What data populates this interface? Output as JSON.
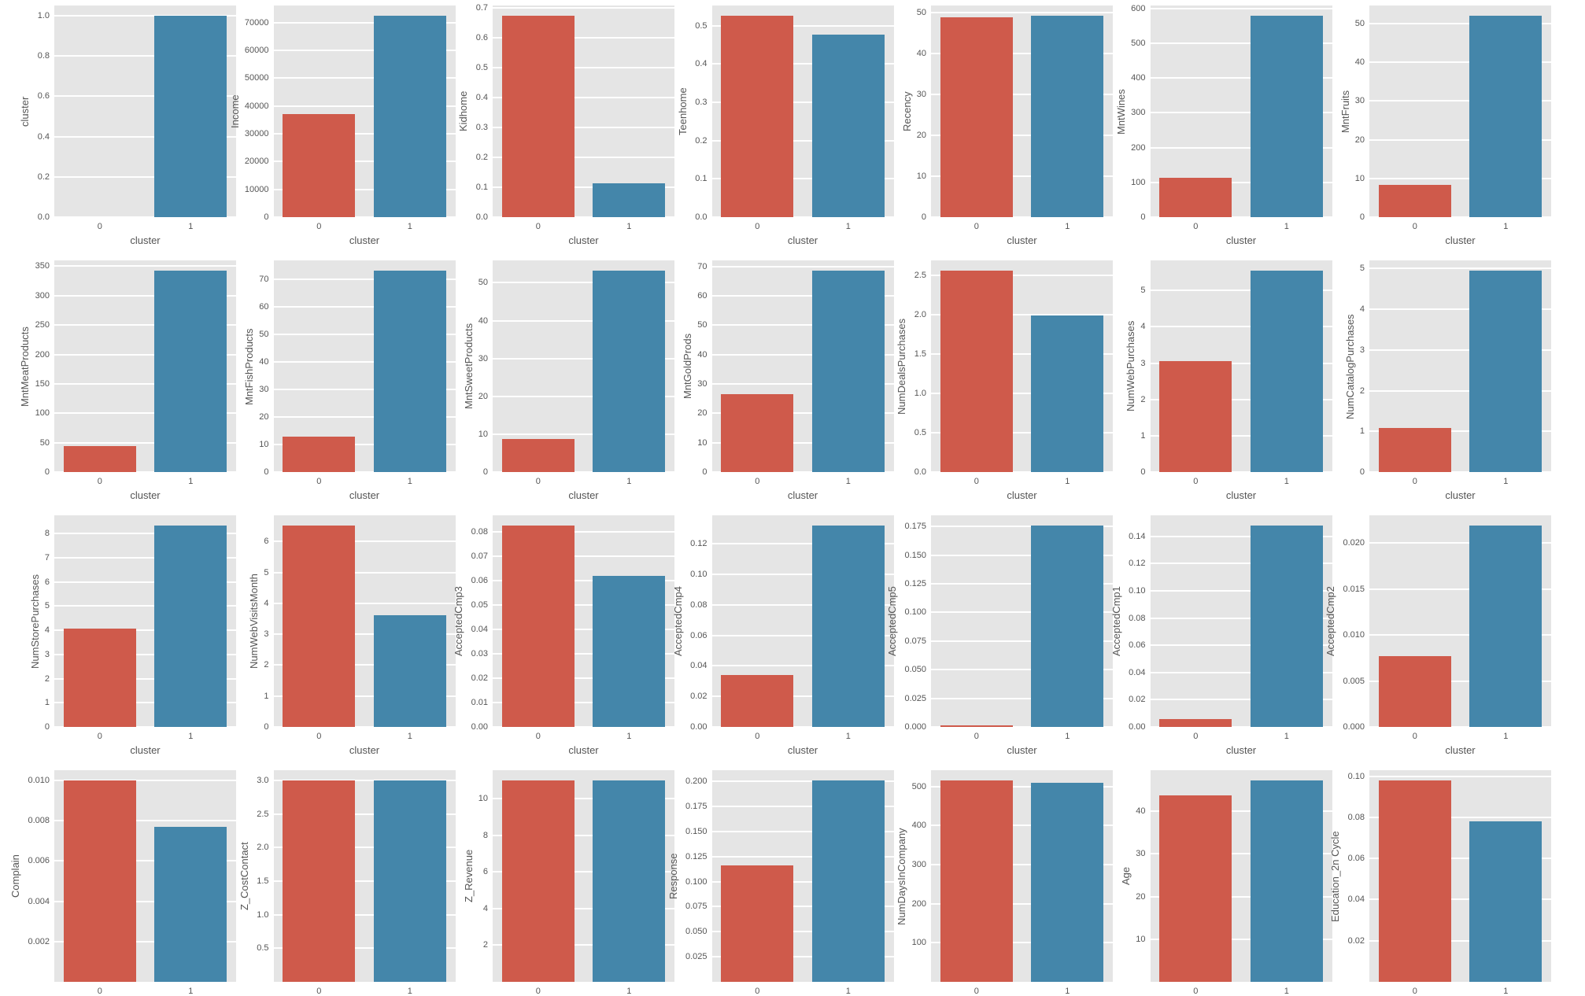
{
  "figure": {
    "description": "Grid of bar charts comparing feature means by cluster (seaborn ggplot style)",
    "colors": {
      "cluster_0": "#CF5A4B",
      "cluster_1": "#4486AA",
      "plot_bg": "#E5E5E5",
      "grid": "#FFFFFF",
      "text": "#555555"
    }
  },
  "chart_data": [
    {
      "type": "bar",
      "row": 0,
      "col": 0,
      "categories": [
        "0",
        "1"
      ],
      "values": [
        0.0,
        1.0
      ],
      "xlabel": "cluster",
      "ylabel": "cluster",
      "yticks": [
        "0.0",
        "0.2",
        "0.4",
        "0.6",
        "0.8",
        "1.0"
      ],
      "ytick_values": [
        0,
        0.2,
        0.4,
        0.6,
        0.8,
        1.0
      ],
      "ylim": [
        0,
        1.05
      ]
    },
    {
      "type": "bar",
      "row": 0,
      "col": 1,
      "categories": [
        "0",
        "1"
      ],
      "values": [
        37200,
        72500
      ],
      "xlabel": "cluster",
      "ylabel": "Income",
      "yticks": [
        "0",
        "10000",
        "20000",
        "30000",
        "40000",
        "50000",
        "60000",
        "70000"
      ],
      "ytick_values": [
        0,
        10000,
        20000,
        30000,
        40000,
        50000,
        60000,
        70000
      ],
      "ylim": [
        0,
        76100
      ]
    },
    {
      "type": "bar",
      "row": 0,
      "col": 2,
      "categories": [
        "0",
        "1"
      ],
      "values": [
        0.675,
        0.114
      ],
      "xlabel": "cluster",
      "ylabel": "Kidhome",
      "yticks": [
        "0.0",
        "0.1",
        "0.2",
        "0.3",
        "0.4",
        "0.5",
        "0.6",
        "0.7"
      ],
      "ytick_values": [
        0,
        0.1,
        0.2,
        0.3,
        0.4,
        0.5,
        0.6,
        0.7
      ],
      "ylim": [
        0,
        0.708
      ]
    },
    {
      "type": "bar",
      "row": 0,
      "col": 3,
      "categories": [
        "0",
        "1"
      ],
      "values": [
        0.527,
        0.477
      ],
      "xlabel": "cluster",
      "ylabel": "Teenhome",
      "yticks": [
        "0.0",
        "0.1",
        "0.2",
        "0.3",
        "0.4",
        "0.5"
      ],
      "ytick_values": [
        0,
        0.1,
        0.2,
        0.3,
        0.4,
        0.5
      ],
      "ylim": [
        0,
        0.553
      ]
    },
    {
      "type": "bar",
      "row": 0,
      "col": 4,
      "categories": [
        "0",
        "1"
      ],
      "values": [
        49.0,
        49.3
      ],
      "xlabel": "cluster",
      "ylabel": "Recency",
      "yticks": [
        "0",
        "10",
        "20",
        "30",
        "40",
        "50"
      ],
      "ytick_values": [
        0,
        10,
        20,
        30,
        40,
        50
      ],
      "ylim": [
        0,
        51.8
      ]
    },
    {
      "type": "bar",
      "row": 0,
      "col": 5,
      "categories": [
        "0",
        "1"
      ],
      "values": [
        113,
        580
      ],
      "xlabel": "cluster",
      "ylabel": "MntWines",
      "yticks": [
        "0",
        "100",
        "200",
        "300",
        "400",
        "500",
        "600"
      ],
      "ytick_values": [
        0,
        100,
        200,
        300,
        400,
        500,
        600
      ],
      "ylim": [
        0,
        609
      ]
    },
    {
      "type": "bar",
      "row": 0,
      "col": 6,
      "categories": [
        "0",
        "1"
      ],
      "values": [
        8.4,
        52.1
      ],
      "xlabel": "cluster",
      "ylabel": "MntFruits",
      "yticks": [
        "0",
        "10",
        "20",
        "30",
        "40",
        "50"
      ],
      "ytick_values": [
        0,
        10,
        20,
        30,
        40,
        50
      ],
      "ylim": [
        0,
        54.7
      ]
    },
    {
      "type": "bar",
      "row": 1,
      "col": 0,
      "categories": [
        "0",
        "1"
      ],
      "values": [
        44,
        343
      ],
      "xlabel": "cluster",
      "ylabel": "MntMeatProducts",
      "yticks": [
        "0",
        "50",
        "100",
        "150",
        "200",
        "250",
        "300",
        "350"
      ],
      "ytick_values": [
        0,
        50,
        100,
        150,
        200,
        250,
        300,
        350
      ],
      "ylim": [
        0,
        360
      ]
    },
    {
      "type": "bar",
      "row": 1,
      "col": 1,
      "categories": [
        "0",
        "1"
      ],
      "values": [
        12.8,
        73.3
      ],
      "xlabel": "cluster",
      "ylabel": "MntFishProducts",
      "yticks": [
        "0",
        "10",
        "20",
        "30",
        "40",
        "50",
        "60",
        "70"
      ],
      "ytick_values": [
        0,
        10,
        20,
        30,
        40,
        50,
        60,
        70
      ],
      "ylim": [
        0,
        77
      ]
    },
    {
      "type": "bar",
      "row": 1,
      "col": 2,
      "categories": [
        "0",
        "1"
      ],
      "values": [
        8.7,
        53.2
      ],
      "xlabel": "cluster",
      "ylabel": "MntSweetProducts",
      "yticks": [
        "0",
        "10",
        "20",
        "30",
        "40",
        "50"
      ],
      "ytick_values": [
        0,
        10,
        20,
        30,
        40,
        50
      ],
      "ylim": [
        0,
        55.9
      ]
    },
    {
      "type": "bar",
      "row": 1,
      "col": 3,
      "categories": [
        "0",
        "1"
      ],
      "values": [
        26.6,
        68.7
      ],
      "xlabel": "cluster",
      "ylabel": "MntGoldProds",
      "yticks": [
        "0",
        "10",
        "20",
        "30",
        "40",
        "50",
        "60",
        "70"
      ],
      "ytick_values": [
        0,
        10,
        20,
        30,
        40,
        50,
        60,
        70
      ],
      "ylim": [
        0,
        72.1
      ]
    },
    {
      "type": "bar",
      "row": 1,
      "col": 4,
      "categories": [
        "0",
        "1"
      ],
      "values": [
        2.56,
        1.99
      ],
      "xlabel": "cluster",
      "ylabel": "NumDealsPurchases",
      "yticks": [
        "0.0",
        "0.5",
        "1.0",
        "1.5",
        "2.0",
        "2.5"
      ],
      "ytick_values": [
        0,
        0.5,
        1.0,
        1.5,
        2.0,
        2.5
      ],
      "ylim": [
        0,
        2.69
      ]
    },
    {
      "type": "bar",
      "row": 1,
      "col": 5,
      "categories": [
        "0",
        "1"
      ],
      "values": [
        3.06,
        5.55
      ],
      "xlabel": "cluster",
      "ylabel": "NumWebPurchases",
      "yticks": [
        "0",
        "1",
        "2",
        "3",
        "4",
        "5"
      ],
      "ytick_values": [
        0,
        1,
        2,
        3,
        4,
        5
      ],
      "ylim": [
        0,
        5.83
      ]
    },
    {
      "type": "bar",
      "row": 1,
      "col": 6,
      "categories": [
        "0",
        "1"
      ],
      "values": [
        1.08,
        4.95
      ],
      "xlabel": "cluster",
      "ylabel": "NumCatalogPurchases",
      "yticks": [
        "0",
        "1",
        "2",
        "3",
        "4",
        "5"
      ],
      "ytick_values": [
        0,
        1,
        2,
        3,
        4,
        5
      ],
      "ylim": [
        0,
        5.2
      ]
    },
    {
      "type": "bar",
      "row": 2,
      "col": 0,
      "categories": [
        "0",
        "1"
      ],
      "values": [
        4.05,
        8.33
      ],
      "xlabel": "cluster",
      "ylabel": "NumStorePurchases",
      "yticks": [
        "0",
        "1",
        "2",
        "3",
        "4",
        "5",
        "6",
        "7",
        "8"
      ],
      "ytick_values": [
        0,
        1,
        2,
        3,
        4,
        5,
        6,
        7,
        8
      ],
      "ylim": [
        0,
        8.75
      ]
    },
    {
      "type": "bar",
      "row": 2,
      "col": 1,
      "categories": [
        "0",
        "1"
      ],
      "values": [
        6.52,
        3.62
      ],
      "xlabel": "cluster",
      "ylabel": "NumWebVisitsMonth",
      "yticks": [
        "0",
        "1",
        "2",
        "3",
        "4",
        "5",
        "6"
      ],
      "ytick_values": [
        0,
        1,
        2,
        3,
        4,
        5,
        6
      ],
      "ylim": [
        0,
        6.85
      ]
    },
    {
      "type": "bar",
      "row": 2,
      "col": 2,
      "categories": [
        "0",
        "1"
      ],
      "values": [
        0.0825,
        0.0617
      ],
      "xlabel": "cluster",
      "ylabel": "AcceptedCmp3",
      "yticks": [
        "0.00",
        "0.01",
        "0.02",
        "0.03",
        "0.04",
        "0.05",
        "0.06",
        "0.07",
        "0.08"
      ],
      "ytick_values": [
        0,
        0.01,
        0.02,
        0.03,
        0.04,
        0.05,
        0.06,
        0.07,
        0.08
      ],
      "ylim": [
        0,
        0.0866
      ]
    },
    {
      "type": "bar",
      "row": 2,
      "col": 3,
      "categories": [
        "0",
        "1"
      ],
      "values": [
        0.034,
        0.132
      ],
      "xlabel": "cluster",
      "ylabel": "AcceptedCmp4",
      "yticks": [
        "0.00",
        "0.02",
        "0.04",
        "0.06",
        "0.08",
        "0.10",
        "0.12"
      ],
      "ytick_values": [
        0,
        0.02,
        0.04,
        0.06,
        0.08,
        0.1,
        0.12
      ],
      "ylim": [
        0,
        0.1386
      ]
    },
    {
      "type": "bar",
      "row": 2,
      "col": 4,
      "categories": [
        "0",
        "1"
      ],
      "values": [
        0.0013,
        0.176
      ],
      "xlabel": "cluster",
      "ylabel": "AcceptedCmp5",
      "yticks": [
        "0.000",
        "0.025",
        "0.050",
        "0.075",
        "0.100",
        "0.125",
        "0.150",
        "0.175"
      ],
      "ytick_values": [
        0,
        0.025,
        0.05,
        0.075,
        0.1,
        0.125,
        0.15,
        0.175
      ],
      "ylim": [
        0,
        0.1848
      ]
    },
    {
      "type": "bar",
      "row": 2,
      "col": 5,
      "categories": [
        "0",
        "1"
      ],
      "values": [
        0.0055,
        0.148
      ],
      "xlabel": "cluster",
      "ylabel": "AcceptedCmp1",
      "yticks": [
        "0.00",
        "0.02",
        "0.04",
        "0.06",
        "0.08",
        "0.10",
        "0.12",
        "0.14"
      ],
      "ytick_values": [
        0,
        0.02,
        0.04,
        0.06,
        0.08,
        0.1,
        0.12,
        0.14
      ],
      "ylim": [
        0,
        0.1554
      ]
    },
    {
      "type": "bar",
      "row": 2,
      "col": 6,
      "categories": [
        "0",
        "1"
      ],
      "values": [
        0.0077,
        0.0219
      ],
      "xlabel": "cluster",
      "ylabel": "AcceptedCmp2",
      "yticks": [
        "0.000",
        "0.005",
        "0.010",
        "0.015",
        "0.020"
      ],
      "ytick_values": [
        0,
        0.005,
        0.01,
        0.015,
        0.02
      ],
      "ylim": [
        0,
        0.023
      ]
    },
    {
      "type": "bar",
      "row": 3,
      "col": 0,
      "categories": [
        "0",
        "1"
      ],
      "values": [
        0.01,
        0.0077
      ],
      "xlabel": "",
      "ylabel": "Complain",
      "yticks": [
        "0.002",
        "0.004",
        "0.006",
        "0.008",
        "0.010"
      ],
      "ytick_values": [
        0.002,
        0.004,
        0.006,
        0.008,
        0.01
      ],
      "ylim": [
        0,
        0.0105
      ]
    },
    {
      "type": "bar",
      "row": 3,
      "col": 1,
      "categories": [
        "0",
        "1"
      ],
      "values": [
        3.0,
        3.0
      ],
      "xlabel": "",
      "ylabel": "Z_CostContact",
      "yticks": [
        "0.5",
        "1.0",
        "1.5",
        "2.0",
        "2.5",
        "3.0"
      ],
      "ytick_values": [
        0.5,
        1.0,
        1.5,
        2.0,
        2.5,
        3.0
      ],
      "ylim": [
        0,
        3.15
      ]
    },
    {
      "type": "bar",
      "row": 3,
      "col": 2,
      "categories": [
        "0",
        "1"
      ],
      "values": [
        11.0,
        11.0
      ],
      "xlabel": "",
      "ylabel": "Z_Revenue",
      "yticks": [
        "2",
        "4",
        "6",
        "8",
        "10"
      ],
      "ytick_values": [
        2,
        4,
        6,
        8,
        10
      ],
      "ylim": [
        0,
        11.55
      ]
    },
    {
      "type": "bar",
      "row": 3,
      "col": 3,
      "categories": [
        "0",
        "1"
      ],
      "values": [
        0.116,
        0.201
      ],
      "xlabel": "",
      "ylabel": "Response",
      "yticks": [
        "0.025",
        "0.050",
        "0.075",
        "0.100",
        "0.125",
        "0.150",
        "0.175",
        "0.200"
      ],
      "ytick_values": [
        0.025,
        0.05,
        0.075,
        0.1,
        0.125,
        0.15,
        0.175,
        0.2
      ],
      "ylim": [
        0,
        0.211
      ]
    },
    {
      "type": "bar",
      "row": 3,
      "col": 4,
      "categories": [
        "0",
        "1"
      ],
      "values": [
        516,
        509
      ],
      "xlabel": "",
      "ylabel": "NumDaysInCompany",
      "yticks": [
        "100",
        "200",
        "300",
        "400",
        "500"
      ],
      "ytick_values": [
        100,
        200,
        300,
        400,
        500
      ],
      "ylim": [
        0,
        542
      ]
    },
    {
      "type": "bar",
      "row": 3,
      "col": 5,
      "categories": [
        "0",
        "1"
      ],
      "values": [
        43.7,
        47.2
      ],
      "xlabel": "",
      "ylabel": "Age",
      "yticks": [
        "10",
        "20",
        "30",
        "40"
      ],
      "ytick_values": [
        10,
        20,
        30,
        40
      ],
      "ylim": [
        0,
        49.6
      ]
    },
    {
      "type": "bar",
      "row": 3,
      "col": 6,
      "categories": [
        "0",
        "1"
      ],
      "values": [
        0.098,
        0.078
      ],
      "xlabel": "",
      "ylabel": "Education_2n Cycle",
      "yticks": [
        "0.02",
        "0.04",
        "0.06",
        "0.08",
        "0.10"
      ],
      "ytick_values": [
        0.02,
        0.04,
        0.06,
        0.08,
        0.1
      ],
      "ylim": [
        0,
        0.1029
      ]
    }
  ]
}
